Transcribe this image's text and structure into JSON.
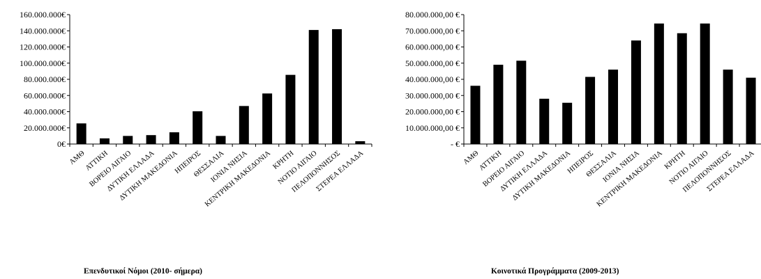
{
  "chart_data": [
    {
      "type": "bar",
      "title": "Επενδυτικοί Νόμοι (2010- σήμερα)",
      "categories": [
        "ΑΜΘ",
        "ΑΤΤΙΚΗ",
        "ΒΟΡΕΙΟ ΑΙΓΑΙΟ",
        "ΔΥΤΙΚΗ ΕΛΛΑΔΑ",
        "ΔΥΤΙΚΗ ΜΑΚΕΔΟΝΙΑ",
        "ΗΠΕΙΡΟΣ",
        "ΘΕΣΣΑΛΙΑ",
        "ΙΟΝΙΑ ΝΗΣΙΑ",
        "ΚΕΝΤΡΙΚΗ ΜΑΚΕΔΟΝΙΑ",
        "ΚΡΗΤΗ",
        "ΝΟΤΙΟ ΑΙΓΑΙΟ",
        "ΠΕΛΟΠΟΝΝΗΣΟΣ",
        "ΣΤΕΡΕΑ ΕΛΛΑΔΑ"
      ],
      "values": [
        25500000,
        7000000,
        10000000,
        11000000,
        14500000,
        40500000,
        10000000,
        47000000,
        62500000,
        85500000,
        141000000,
        142000000,
        3500000
      ],
      "ylim": [
        0,
        160000000
      ],
      "yticks": [
        0,
        20000000,
        40000000,
        60000000,
        80000000,
        100000000,
        120000000,
        140000000,
        160000000
      ],
      "ytick_labels": [
        "0€",
        "20.000.000€",
        "40.000.000€",
        "60.000.000€",
        "80.000.000€",
        "100.000.000€",
        "120.000.000€",
        "140.000.000€",
        "160.000.000€"
      ],
      "grid": false,
      "bar_color": "#000000"
    },
    {
      "type": "bar",
      "title": "Κοινοτικά Προγράμματα (2009-2013)",
      "categories": [
        "ΑΜΘ",
        "ΑΤΤΙΚΗ",
        "ΒΟΡΕΙΟ ΑΙΓΑΙΟ",
        "ΔΥΤΙΚΗ ΕΛΛΑΔΑ",
        "ΔΥΤΙΚΗ ΜΑΚΕΔΟΝΙΑ",
        "ΗΠΕΙΡΟΣ",
        "ΘΕΣΣΑΛΙΑ",
        "ΙΟΝΙΑ ΝΗΣΙΑ",
        "ΚΕΝΤΡΙΚΗ ΜΑΚΕΔΟΝΙΑ",
        "ΚΡΗΤΗ",
        "ΝΟΤΙΟ ΑΙΓΑΙΟ",
        "ΠΕΛΟΠΟΝΝΗΣΟΣ",
        "ΣΤΕΡΕΑ ΕΛΛΑΔΑ"
      ],
      "values": [
        36000000,
        49000000,
        51500000,
        28000000,
        25500000,
        41500000,
        46000000,
        64000000,
        74500000,
        68500000,
        74500000,
        46000000,
        41000000
      ],
      "ylim": [
        0,
        80000000
      ],
      "yticks": [
        0,
        10000000,
        20000000,
        30000000,
        40000000,
        50000000,
        60000000,
        70000000,
        80000000
      ],
      "ytick_labels": [
        "-  €",
        "10.000.000,00 €",
        "20.000.000,00 €",
        "30.000.000,00 €",
        "40.000.000,00 €",
        "50.000.000,00 €",
        "60.000.000,00 €",
        "70.000.000,00 €",
        "80.000.000,00 €"
      ],
      "grid": false,
      "bar_color": "#000000"
    }
  ]
}
